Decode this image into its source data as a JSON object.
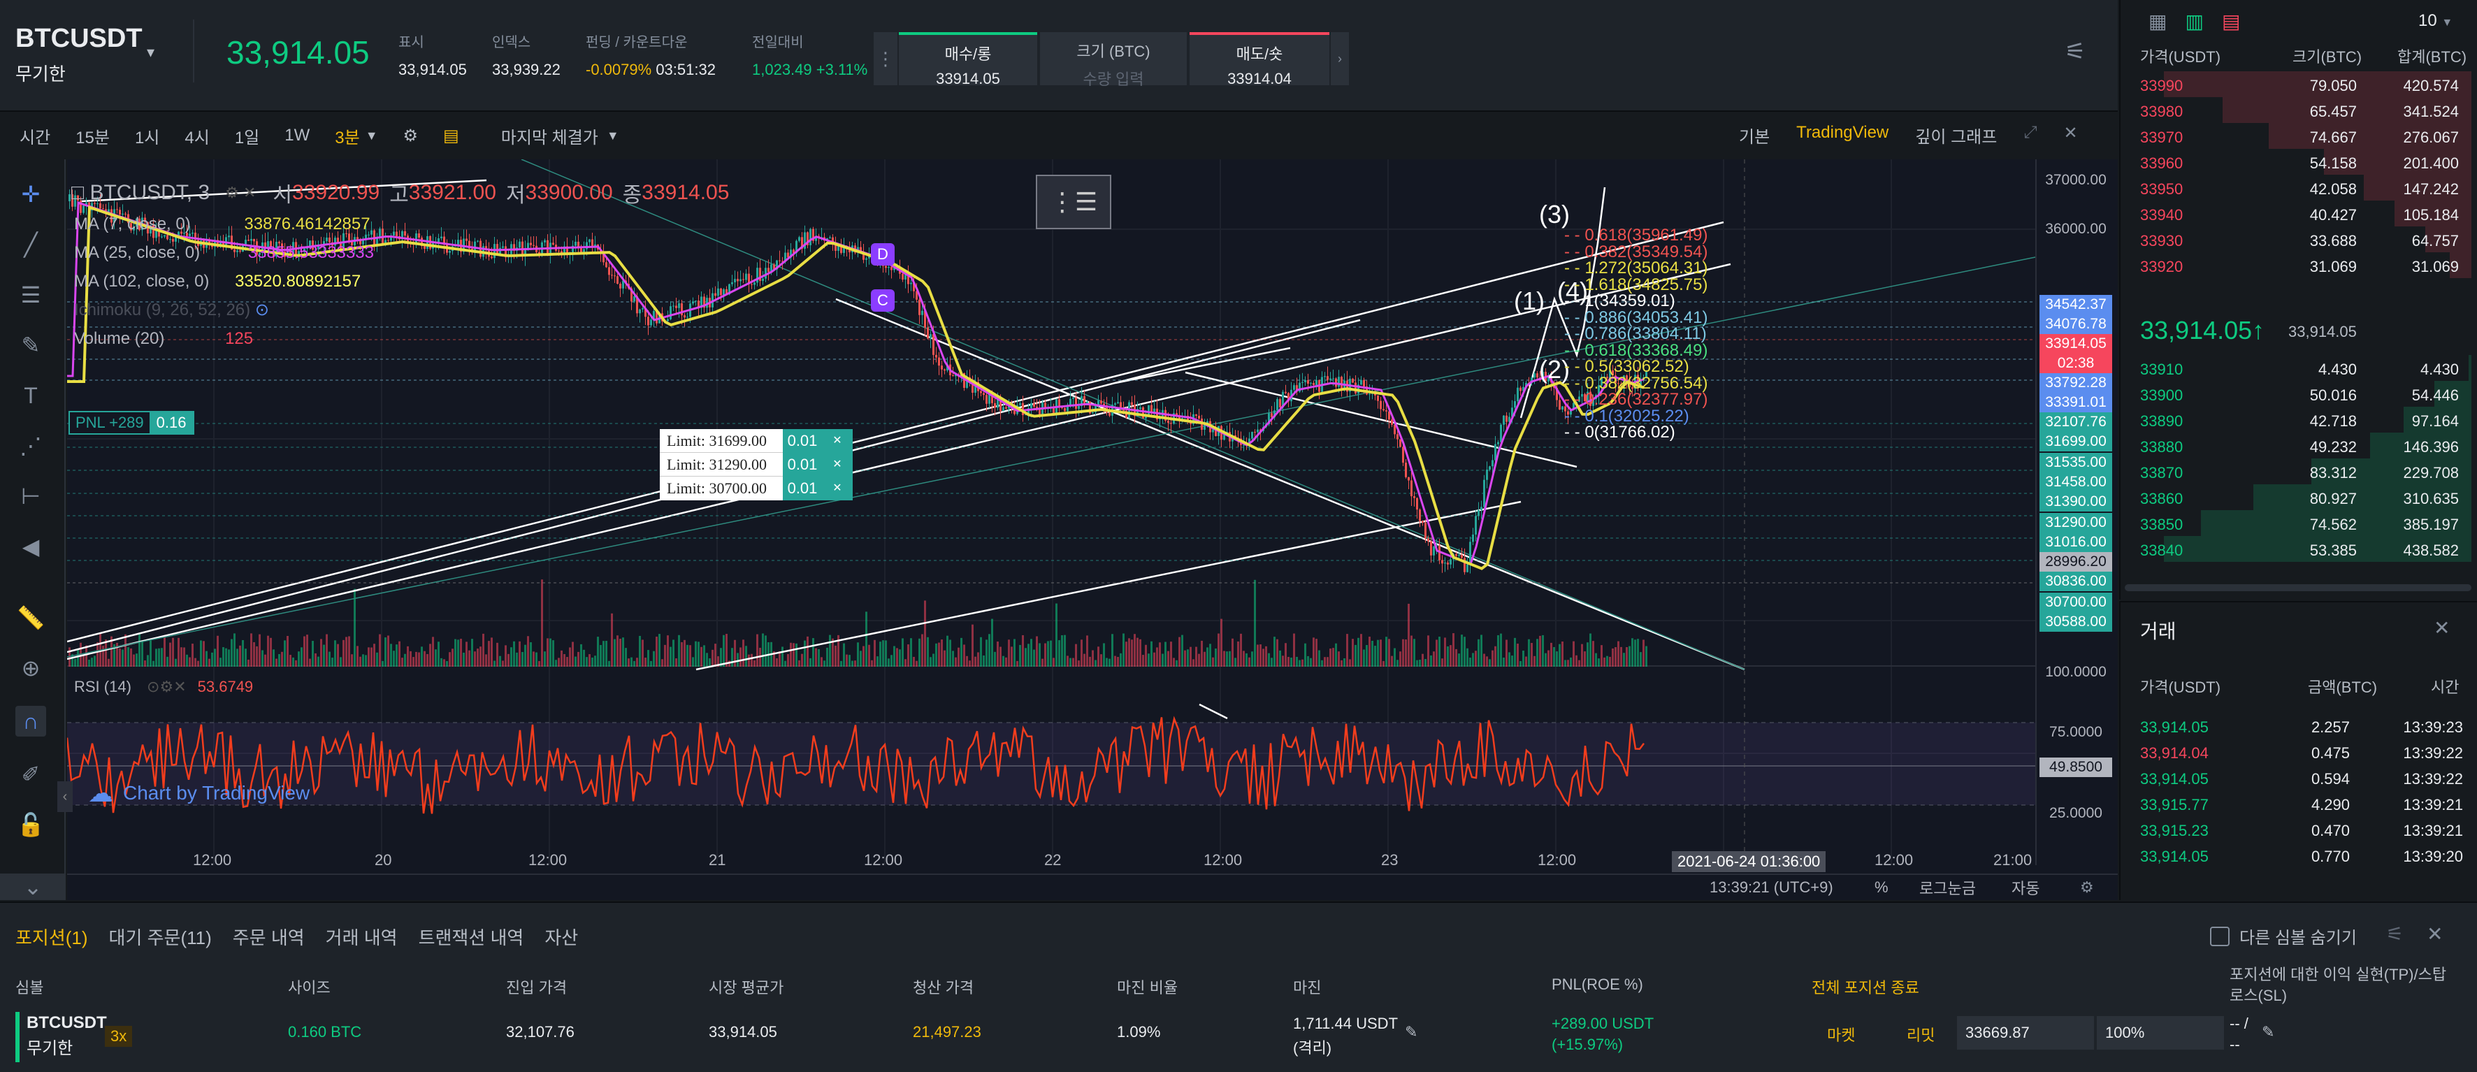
{
  "header": {
    "symbol": "BTCUSDT",
    "mode": "무기한",
    "price": "33,914.05",
    "stats": [
      {
        "label": "표시",
        "value": "33,914.05"
      },
      {
        "label": "인덱스",
        "value": "33,939.22"
      },
      {
        "label": "펀딩 / 카운트다운",
        "value": "-0.0079%",
        "extra": "03:51:32"
      },
      {
        "label": "전일대비",
        "value": "1,023.49 +3.11%"
      }
    ],
    "buy": {
      "label": "매수/롱",
      "price": "33914.05"
    },
    "size": {
      "label": "크기 (BTC)",
      "placeholder": "수량 입력"
    },
    "sell": {
      "label": "매도/숏",
      "price": "33914.04"
    }
  },
  "toolbar": {
    "intervals": [
      "시간",
      "15분",
      "1시",
      "4시",
      "1일",
      "1W"
    ],
    "selected": "3분",
    "price_type": "마지막 체결가",
    "views": [
      "기본",
      "TradingView",
      "깊이 그래프"
    ]
  },
  "chart": {
    "title": "□ BTCUSDT, 3",
    "ohlc": {
      "o_label": "시",
      "o": "33920.99",
      "h_label": "고",
      "h": "33921.00",
      "l_label": "저",
      "l": "33900.00",
      "c_label": "종",
      "c": "33914.05"
    },
    "indicators": [
      {
        "name": "MA (7, close, 0)",
        "value": "33876.46142857",
        "color": "#e8de44"
      },
      {
        "name": "MA (25, close, 0)",
        "value": "33855.53333333",
        "color": "#d946ef"
      },
      {
        "name": "MA (102, close, 0)",
        "value": "33520.80892157",
        "color": "#ffff66"
      },
      {
        "name": "Ichimoku (9, 26, 52, 26)",
        "value": "",
        "color": "#888"
      },
      {
        "name": "Volume (20)",
        "value": "125",
        "color": "#f6465d"
      }
    ],
    "pnl": {
      "label": "PNL +289",
      "qty": "0.16"
    },
    "limit_orders": [
      {
        "label": "Limit: 31699.00",
        "qty": "0.01"
      },
      {
        "label": "Limit: 31290.00",
        "qty": "0.01"
      },
      {
        "label": "Limit: 30700.00",
        "qty": "0.01"
      }
    ],
    "fib_labels": [
      {
        "text": "0.618(35961.49)",
        "color": "#ef5350"
      },
      {
        "text": "0.382(35349.54)",
        "color": "#ef5350"
      },
      {
        "text": "1.272(35064.31)",
        "color": "#e8de44"
      },
      {
        "text": "1.618(34825.75)",
        "color": "#e8de44"
      },
      {
        "text": "1(34359.01)",
        "color": "#ffffff"
      },
      {
        "text": "0.886(34053.41)",
        "color": "#7ec8e3"
      },
      {
        "text": "0.786(33804.11)",
        "color": "#7ec8e3"
      },
      {
        "text": "0.618(33368.49)",
        "color": "#4ade80"
      },
      {
        "text": "0.5(33062.52)",
        "color": "#e8de44"
      },
      {
        "text": "0.382(32756.54)",
        "color": "#e8de44"
      },
      {
        "text": "0.236(32377.97)",
        "color": "#ef5350"
      },
      {
        "text": "0.1(32025.22)",
        "color": "#5b8def"
      },
      {
        "text": "0(31766.02)",
        "color": "#ffffff"
      }
    ],
    "wave_labels": [
      "(3)",
      "(1)",
      "(4)",
      "(2)"
    ],
    "markers": [
      "D",
      "C"
    ],
    "yaxis": [
      "37000.00",
      "36000.00",
      "34542.37",
      "34076.78",
      "33914.05",
      "02:38",
      "33792.28",
      "33391.01",
      "32107.76",
      "31699.00",
      "31535.00",
      "31458.00",
      "31390.00",
      "31290.00",
      "31016.00",
      "28996.20",
      "30836.00",
      "30700.00",
      "30588.00",
      "100.0000",
      "75.0000",
      "49.8500",
      "25.0000"
    ],
    "xaxis": [
      "12:00",
      "20",
      "12:00",
      "21",
      "12:00",
      "22",
      "12:00",
      "23",
      "12:00",
      "2021-06-24 01:36:00",
      "12:00",
      "21:00"
    ],
    "rsi": {
      "label": "RSI (14)",
      "value": "53.6749"
    },
    "branding": "Chart by TradingView",
    "footer": {
      "time": "13:39:21 (UTC+9)",
      "pct": "%",
      "log": "로그눈금",
      "auto": "자동"
    }
  },
  "orderbook": {
    "depth": "10",
    "headers": [
      "가격(USDT)",
      "크기(BTC)",
      "합계(BTC)"
    ],
    "asks": [
      {
        "price": "33990",
        "size": "79.050",
        "total": "420.574",
        "depth": 1.0
      },
      {
        "price": "33980",
        "size": "65.457",
        "total": "341.524",
        "depth": 0.81
      },
      {
        "price": "33970",
        "size": "74.667",
        "total": "276.067",
        "depth": 0.66
      },
      {
        "price": "33960",
        "size": "54.158",
        "total": "201.400",
        "depth": 0.48
      },
      {
        "price": "33950",
        "size": "42.058",
        "total": "147.242",
        "depth": 0.35
      },
      {
        "price": "33940",
        "size": "40.427",
        "total": "105.184",
        "depth": 0.25
      },
      {
        "price": "33930",
        "size": "33.688",
        "total": "64.757",
        "depth": 0.15
      },
      {
        "price": "33920",
        "size": "31.069",
        "total": "31.069",
        "depth": 0.07
      }
    ],
    "last_price": "33,914.05",
    "arrow": "↑",
    "mark_price": "33,914.05",
    "bids": [
      {
        "price": "33910",
        "size": "4.430",
        "total": "4.430",
        "depth": 0.01
      },
      {
        "price": "33900",
        "size": "50.016",
        "total": "54.446",
        "depth": 0.12
      },
      {
        "price": "33890",
        "size": "42.718",
        "total": "97.164",
        "depth": 0.22
      },
      {
        "price": "33880",
        "size": "49.232",
        "total": "146.396",
        "depth": 0.33
      },
      {
        "price": "33870",
        "size": "83.312",
        "total": "229.708",
        "depth": 0.52
      },
      {
        "price": "33860",
        "size": "80.927",
        "total": "310.635",
        "depth": 0.71
      },
      {
        "price": "33850",
        "size": "74.562",
        "total": "385.197",
        "depth": 0.88
      },
      {
        "price": "33840",
        "size": "53.385",
        "total": "438.582",
        "depth": 1.0
      }
    ]
  },
  "trades": {
    "title": "거래",
    "headers": [
      "가격(USDT)",
      "금액(BTC)",
      "시간"
    ],
    "rows": [
      {
        "price": "33,914.05",
        "amount": "2.257",
        "time": "13:39:23",
        "side": "buy"
      },
      {
        "price": "33,914.04",
        "amount": "0.475",
        "time": "13:39:22",
        "side": "sell"
      },
      {
        "price": "33,914.05",
        "amount": "0.594",
        "time": "13:39:22",
        "side": "buy"
      },
      {
        "price": "33,915.77",
        "amount": "4.290",
        "time": "13:39:21",
        "side": "buy"
      },
      {
        "price": "33,915.23",
        "amount": "0.470",
        "time": "13:39:21",
        "side": "buy"
      },
      {
        "price": "33,914.05",
        "amount": "0.770",
        "time": "13:39:20",
        "side": "buy"
      }
    ]
  },
  "positions": {
    "tabs": [
      "포지션(1)",
      "대기 주문(11)",
      "주문 내역",
      "거래 내역",
      "트랜잭션 내역",
      "자산"
    ],
    "hide_other": "다른 심볼 숨기기",
    "headers": [
      "심볼",
      "사이즈",
      "진입 가격",
      "시장 평균가",
      "청산 가격",
      "마진 비율",
      "마진",
      "PNL(ROE %)",
      "전체 포지션 종료",
      "포지션에 대한 이익 실현(TP)/스탑 로스(SL)"
    ],
    "row": {
      "symbol": "BTCUSDT",
      "mode": "무기한",
      "leverage": "3x",
      "size": "0.160 BTC",
      "entry": "32,107.76",
      "mark": "33,914.05",
      "liq": "21,497.23",
      "margin_ratio": "1.09%",
      "margin": "1,711.44 USDT",
      "margin_type": "(격리)",
      "pnl": "+289.00 USDT",
      "roe": "(+15.97%)",
      "market": "마켓",
      "limit": "리밋",
      "limit_price": "33669.87",
      "limit_pct": "100%",
      "tpsl": "-- /",
      "tpsl2": "--"
    }
  }
}
